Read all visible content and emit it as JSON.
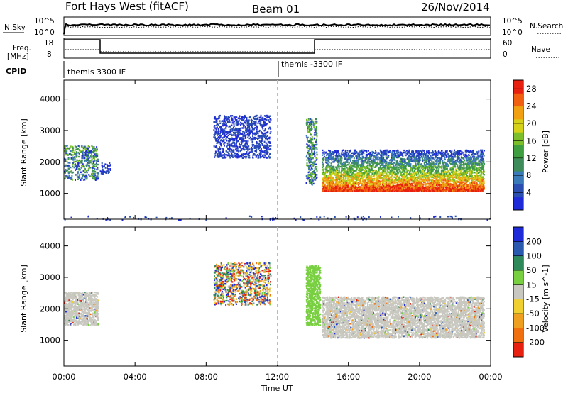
{
  "header": {
    "station": "Fort Hays West (fitACF)",
    "beam": "Beam 01",
    "date": "26/Nov/2014"
  },
  "strip_panels": {
    "nsky_label": "N.Sky",
    "nsearch_label": "N.Search",
    "noise_ticks": [
      "10^5",
      "10^0"
    ],
    "freq_label_line1": "Freq.",
    "freq_label_line2": "[MHz]",
    "freq_ticks": [
      "18",
      "8"
    ],
    "nave_label": "Nave",
    "nave_ticks": [
      "60",
      "0"
    ],
    "cpid_label": "CPID",
    "cpid_segments": [
      {
        "name": "themis 3300 IF",
        "start_hour": 0
      },
      {
        "name": "themis -3300 IF",
        "start_hour": 12
      }
    ]
  },
  "colors": {
    "power": [
      "#1f2ad8",
      "#2a4fb0",
      "#3a7ab8",
      "#3e8c5a",
      "#3f9e3f",
      "#7cbf2a",
      "#d6d21a",
      "#f0a010",
      "#f06010",
      "#e82010"
    ],
    "velocity": [
      "#1f2ad8",
      "#2a5ab0",
      "#2f8a5a",
      "#78d040",
      "#c8c8c0",
      "#f0d030",
      "#f0a020",
      "#f07010",
      "#e82010"
    ]
  },
  "chart_data": [
    {
      "type": "heatmap",
      "title": "",
      "xlabel": "Time UT",
      "ylabel": "Slant Range [km]",
      "x_ticks": [
        "00:00",
        "04:00",
        "08:00",
        "12:00",
        "16:00",
        "20:00",
        "00:00"
      ],
      "xlim": [
        0,
        24
      ],
      "y_ticks": [
        "1000",
        "2000",
        "3000",
        "4000"
      ],
      "ylim": [
        180,
        4600
      ],
      "colorbar_label": "Power [dB]",
      "colorbar_ticks": [
        "4",
        "8",
        "12",
        "16",
        "20",
        "24",
        "28"
      ],
      "colorbar_range": [
        0,
        30
      ],
      "regions": [
        {
          "t": [
            0.0,
            1.9
          ],
          "range": [
            1450,
            2550
          ],
          "level": "mixed"
        },
        {
          "t": [
            2.0,
            2.6
          ],
          "range": [
            1650,
            2000
          ],
          "level": "low"
        },
        {
          "t": [
            8.4,
            11.6
          ],
          "range": [
            2150,
            3500
          ],
          "level": "low"
        },
        {
          "t": [
            13.6,
            14.2
          ],
          "range": [
            1300,
            3400
          ],
          "level": "mixed"
        },
        {
          "t": [
            14.5,
            23.6
          ],
          "range": [
            1100,
            2400
          ],
          "level": "high"
        },
        {
          "t": [
            0.0,
            24.0
          ],
          "range": [
            180,
            300
          ],
          "level": "low"
        }
      ]
    },
    {
      "type": "heatmap",
      "title": "",
      "xlabel": "Time UT",
      "ylabel": "Slant Range [km]",
      "x_ticks": [
        "00:00",
        "04:00",
        "08:00",
        "12:00",
        "16:00",
        "20:00",
        "00:00"
      ],
      "xlim": [
        0,
        24
      ],
      "y_ticks": [
        "1000",
        "2000",
        "3000",
        "4000"
      ],
      "ylim": [
        180,
        4600
      ],
      "colorbar_label": "Velocity [m s^-1]",
      "colorbar_ticks": [
        "200",
        "100",
        "50",
        "15",
        "-15",
        "-50",
        "-100",
        "-200"
      ],
      "colorbar_range": [
        -250,
        250
      ],
      "regions": [
        {
          "t": [
            0.0,
            1.9
          ],
          "range": [
            1500,
            2550
          ],
          "level": "ground"
        },
        {
          "t": [
            8.4,
            11.6
          ],
          "range": [
            2150,
            3500
          ],
          "level": "mixed"
        },
        {
          "t": [
            13.6,
            14.4
          ],
          "range": [
            1500,
            3400
          ],
          "level": "positive"
        },
        {
          "t": [
            14.5,
            23.6
          ],
          "range": [
            1100,
            2400
          ],
          "level": "ground"
        }
      ]
    }
  ]
}
